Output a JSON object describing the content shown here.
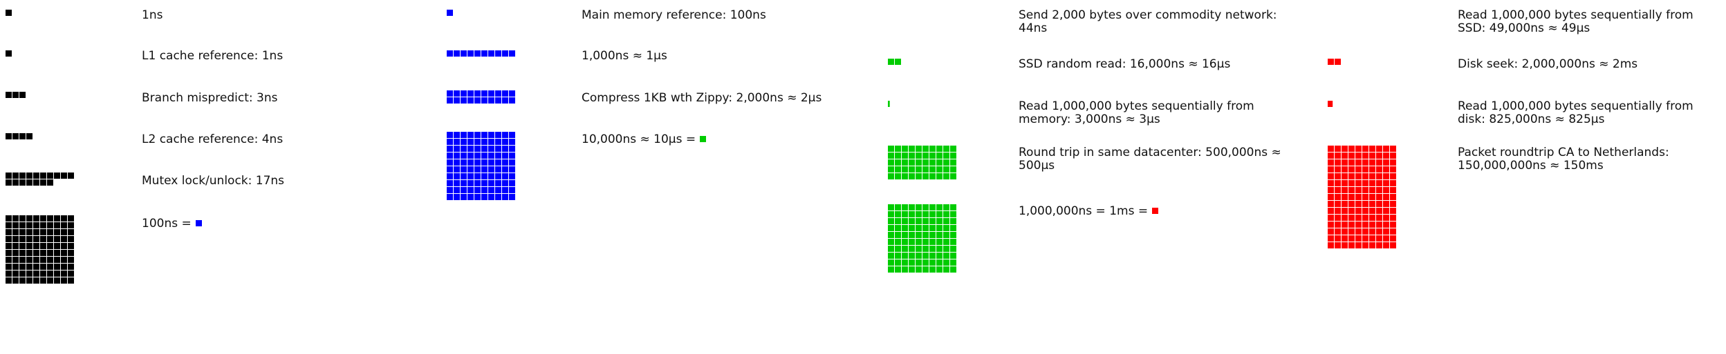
{
  "colors": {
    "black": "#000000",
    "blue": "#0000ff",
    "green": "#00cc00",
    "red": "#ff0000"
  },
  "columns": [
    {
      "id": "ns",
      "rows": [
        {
          "label": "1ns",
          "count": 1,
          "color": "black"
        },
        {
          "label": "L1 cache reference: 1ns",
          "count": 1,
          "color": "black"
        },
        {
          "label": "Branch mispredict: 3ns",
          "count": 3,
          "color": "black"
        },
        {
          "label": "L2 cache reference: 4ns",
          "count": 4,
          "color": "black"
        },
        {
          "label": "Mutex lock/unlock: 17ns",
          "count": 17,
          "color": "black"
        },
        {
          "label": "100ns =",
          "count": 100,
          "color": "black",
          "equals_color": "blue"
        }
      ]
    },
    {
      "id": "hundred-ns",
      "rows": [
        {
          "label": "Main memory reference: 100ns",
          "count": 1,
          "color": "blue"
        },
        {
          "label": "1,000ns ≈ 1µs",
          "count": 10,
          "color": "blue"
        },
        {
          "label": "Compress 1KB wth Zippy: 2,000ns ≈ 2µs",
          "count": 20,
          "color": "blue"
        },
        {
          "label": "10,000ns ≈ 10µs =",
          "count": 100,
          "color": "blue",
          "equals_color": "green"
        }
      ]
    },
    {
      "id": "ten-us",
      "rows": [
        {
          "label": "Send 2,000 bytes over commodity network: 44ns",
          "count": 0,
          "color": "green"
        },
        {
          "label": "SSD random read: 16,000ns ≈ 16µs",
          "count": 2,
          "color": "green"
        },
        {
          "label": "Read 1,000,000 bytes sequentially from memory: 3,000ns ≈ 3µs",
          "count": 0.3,
          "color": "green"
        },
        {
          "label": "Round trip in same datacenter: 500,000ns ≈ 500µs",
          "count": 50,
          "color": "green"
        },
        {
          "label": "1,000,000ns = 1ms =",
          "count": 100,
          "color": "green",
          "equals_color": "red"
        }
      ]
    },
    {
      "id": "ms",
      "rows": [
        {
          "label": "Read 1,000,000 bytes sequentially from SSD: 49,000ns ≈ 49µs",
          "count": 0,
          "color": "red"
        },
        {
          "label": "Disk seek: 2,000,000ns ≈ 2ms",
          "count": 2,
          "color": "red"
        },
        {
          "label": "Read 1,000,000 bytes sequentially from disk: 825,000ns ≈ 825µs",
          "count": 0.8,
          "color": "red"
        },
        {
          "label": "Packet roundtrip CA to Netherlands: 150,000,000ns ≈ 150ms",
          "count": 150,
          "color": "red"
        }
      ]
    }
  ]
}
